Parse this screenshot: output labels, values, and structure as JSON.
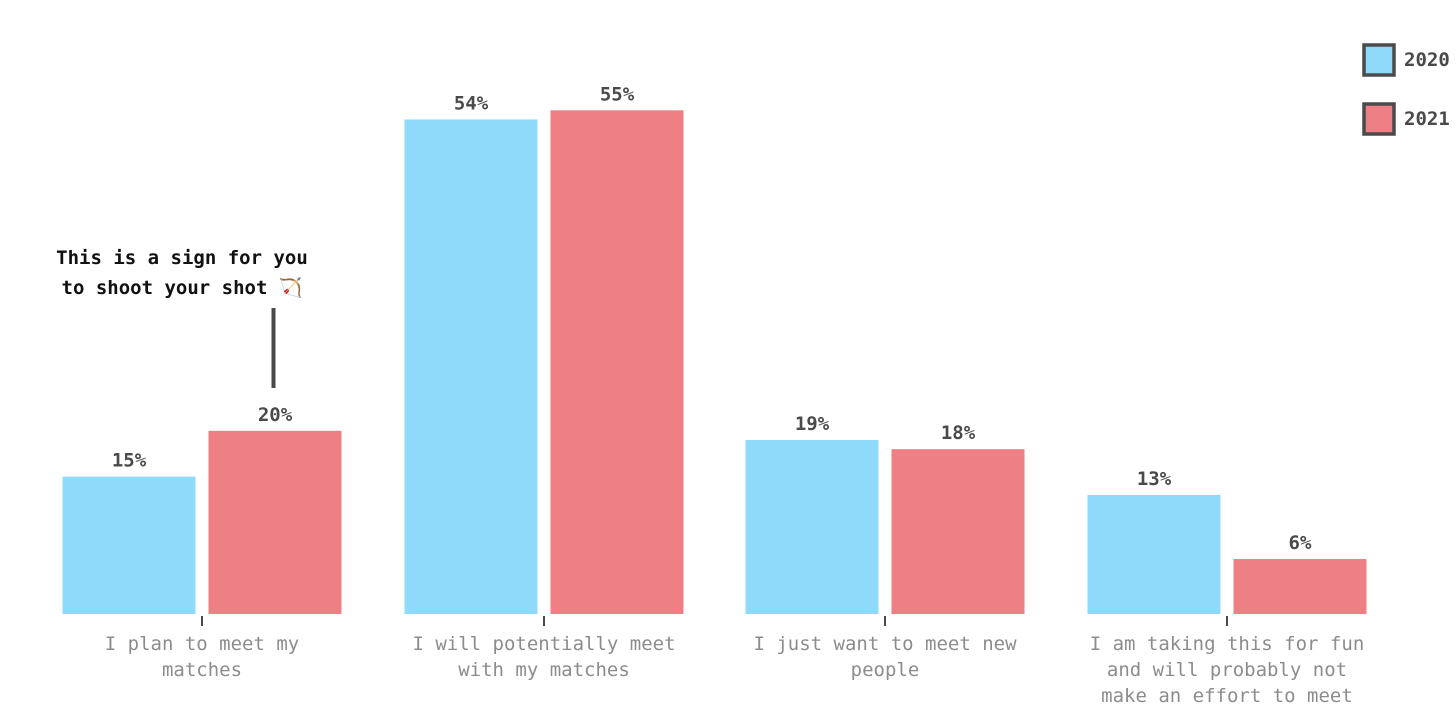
{
  "chart_data": {
    "type": "bar",
    "categories": [
      [
        "I plan to meet my",
        "matches"
      ],
      [
        "I will potentially meet",
        "with my matches"
      ],
      [
        "I just want to meet new",
        "people"
      ],
      [
        "I am taking this for fun",
        "and will probably not",
        "make an effort to meet"
      ]
    ],
    "series": [
      {
        "name": "2020",
        "color": "#8fd9fa",
        "values": [
          15,
          54,
          19,
          13
        ]
      },
      {
        "name": "2021",
        "color": "#ee7f84",
        "values": [
          20,
          55,
          18,
          6
        ]
      }
    ],
    "value_suffix": "%",
    "ylim": [
      0,
      57
    ],
    "grid": false,
    "legend": "top-right",
    "annotation": {
      "lines": [
        "This is a sign for you",
        "to shoot your shot 🏹"
      ],
      "target_category": 0,
      "target_series": 1
    }
  }
}
